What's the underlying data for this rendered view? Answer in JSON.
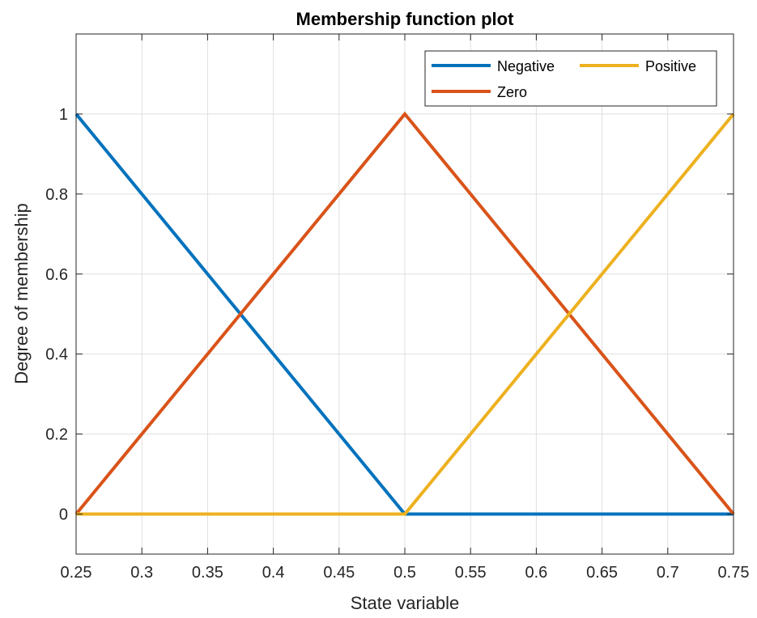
{
  "chart_data": {
    "type": "line",
    "title": "Membership function plot",
    "xlabel": "State variable",
    "ylabel": "Degree of membership",
    "xlim": [
      0.25,
      0.75
    ],
    "ylim": [
      -0.1,
      1.2
    ],
    "xticks": [
      0.25,
      0.3,
      0.35,
      0.4,
      0.45,
      0.5,
      0.55,
      0.6,
      0.65,
      0.7,
      0.75
    ],
    "xtick_labels": [
      "0.25",
      "0.3",
      "0.35",
      "0.4",
      "0.45",
      "0.5",
      "0.55",
      "0.6",
      "0.65",
      "0.7",
      "0.75"
    ],
    "yticks": [
      0,
      0.2,
      0.4,
      0.6,
      0.8,
      1
    ],
    "ytick_labels": [
      "0",
      "0.2",
      "0.4",
      "0.6",
      "0.8",
      "1"
    ],
    "grid": true,
    "legend_position": "top-right",
    "series": [
      {
        "name": "Negative",
        "color": "#0072BD",
        "x": [
          0.25,
          0.5,
          0.75
        ],
        "y": [
          1,
          0,
          0
        ]
      },
      {
        "name": "Zero",
        "color": "#D95319",
        "x": [
          0.25,
          0.5,
          0.75
        ],
        "y": [
          0,
          1,
          0
        ]
      },
      {
        "name": "Positive",
        "color": "#EDB120",
        "x": [
          0.25,
          0.5,
          0.75
        ],
        "y": [
          0,
          0,
          1
        ]
      }
    ]
  }
}
